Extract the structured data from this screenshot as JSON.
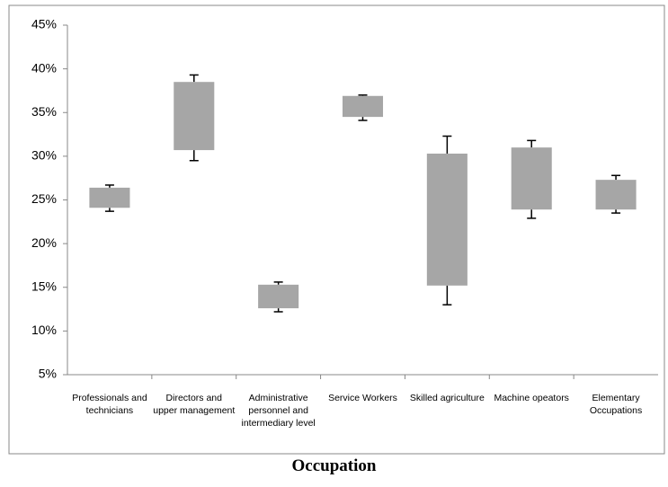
{
  "chart_data": {
    "type": "box",
    "x_label": "Occupation",
    "categories": [
      "Professionals and technicians",
      "Directors and upper management",
      "Administrative personnel and intermediary level",
      "Service Workers",
      "Skilled agriculture",
      "Machine opeators",
      "Elementary Occupations"
    ],
    "low": [
      23.7,
      29.5,
      12.2,
      34.1,
      13.0,
      22.9,
      23.5
    ],
    "box_low": [
      24.1,
      30.7,
      12.6,
      34.5,
      15.2,
      23.9,
      23.9
    ],
    "box_high": [
      26.4,
      38.5,
      15.3,
      36.9,
      30.3,
      31.0,
      27.3
    ],
    "high": [
      26.7,
      39.3,
      15.6,
      37.0,
      32.3,
      31.8,
      27.8
    ],
    "color": "#a6a6a6",
    "ylim": [
      5,
      45
    ],
    "yticks": [
      {
        "value": 5,
        "label": "5%"
      },
      {
        "value": 10,
        "label": "10%"
      },
      {
        "value": 15,
        "label": "15%"
      },
      {
        "value": 20,
        "label": "20%"
      },
      {
        "value": 25,
        "label": "25%"
      },
      {
        "value": 30,
        "label": "30%"
      },
      {
        "value": 35,
        "label": "35%"
      },
      {
        "value": 40,
        "label": "40%"
      },
      {
        "value": 45,
        "label": "45%"
      }
    ]
  }
}
